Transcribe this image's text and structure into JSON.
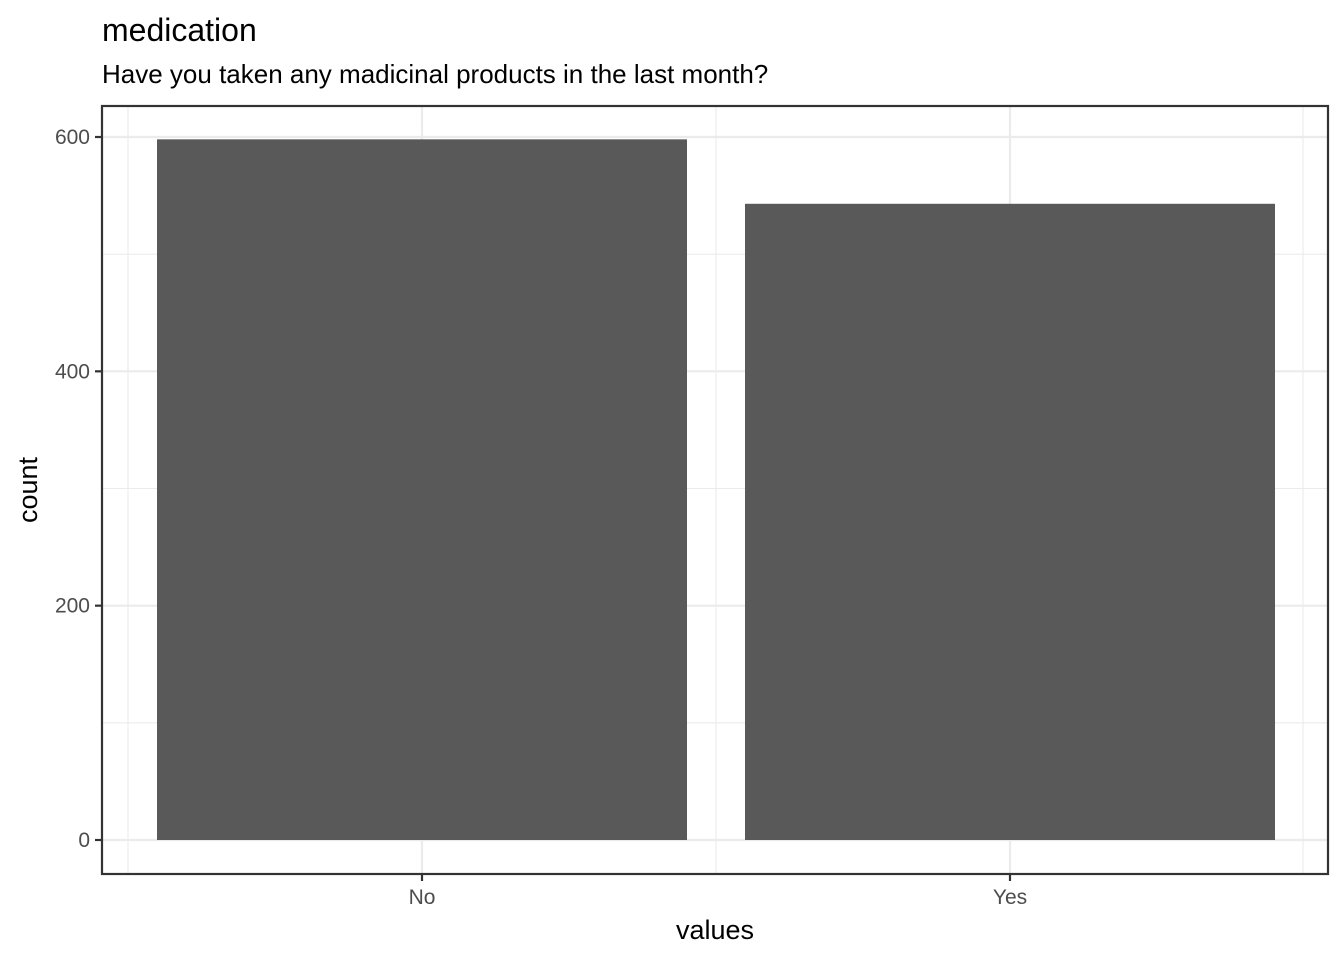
{
  "chart_data": {
    "type": "bar",
    "title": "medication",
    "subtitle": "Have you taken any madicinal products in the last month?",
    "xlabel": "values",
    "ylabel": "count",
    "categories": [
      "No",
      "Yes"
    ],
    "values": [
      598,
      543
    ],
    "ylim": [
      0,
      626
    ],
    "yticks": [
      0,
      200,
      400,
      600
    ],
    "grid": true,
    "colors": {
      "bar": "#595959",
      "panel_border": "#333333",
      "grid": "#ebebeb"
    }
  }
}
